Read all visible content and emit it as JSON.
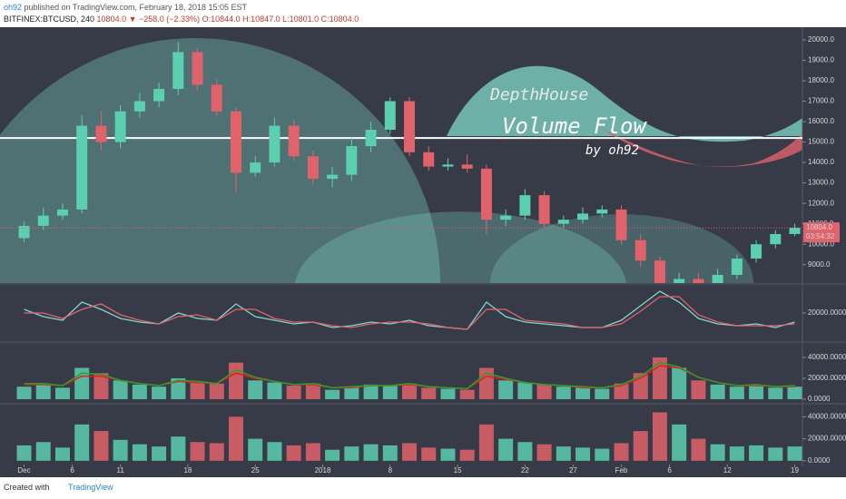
{
  "header": {
    "author": "oh92",
    "published": "published on TradingView.com, February 18, 2018 15:05 EST",
    "symbol": "BITFINEX:BTCUSD, 240",
    "quote": "10804.0 ▼ −258.0 (−2.33%)",
    "ohlc": "O:10844.0 H:10847.0 L:10801.0 C:10804.0"
  },
  "footer": {
    "created": "Created with",
    "brand": "TradingView"
  },
  "chart_data": [
    {
      "type": "candlestick",
      "annotations": [
        "DepthHouse",
        "Volume Flow",
        "by oh92"
      ],
      "last_price": {
        "value": 10804,
        "label": "10804.0"
      },
      "countdown": "03:54:32",
      "hline": 15200,
      "up_color": "#5ccfb0",
      "down_color": "#e0636b",
      "x": [
        0,
        2,
        4,
        6,
        8,
        10,
        12,
        14,
        16,
        18,
        20,
        22,
        24,
        26,
        28,
        30,
        32,
        34,
        36,
        38,
        40,
        42,
        44,
        46,
        48,
        50,
        52,
        54,
        56,
        58,
        60,
        62,
        64,
        66,
        68,
        70,
        72,
        74,
        76,
        78,
        80
      ],
      "open": [
        10300,
        10900,
        11400,
        11700,
        15800,
        15000,
        16500,
        17000,
        17600,
        19400,
        17800,
        16500,
        13500,
        14000,
        15800,
        14300,
        13200,
        13400,
        14800,
        15600,
        17000,
        14500,
        13800,
        13900,
        13700,
        11200,
        11400,
        12400,
        11000,
        11200,
        11500,
        11700,
        10200,
        9200,
        7900,
        8300,
        8000,
        8500,
        9300,
        10000,
        10500
      ],
      "high": [
        11100,
        11800,
        12000,
        16300,
        16500,
        16800,
        17400,
        17900,
        19900,
        19600,
        18100,
        16700,
        14300,
        16200,
        16100,
        14600,
        13800,
        15200,
        16000,
        17200,
        17200,
        14800,
        14200,
        14400,
        13900,
        11700,
        12700,
        12600,
        11400,
        11800,
        11900,
        11900,
        10500,
        9400,
        8600,
        8600,
        8800,
        9500,
        10200,
        10700,
        11000
      ],
      "low": [
        10100,
        10700,
        11200,
        11500,
        14600,
        14700,
        16200,
        16700,
        17300,
        17500,
        16300,
        12500,
        13300,
        13800,
        14100,
        12900,
        12800,
        13100,
        14500,
        15400,
        14300,
        13600,
        13600,
        13500,
        10500,
        10900,
        11200,
        10800,
        10800,
        11000,
        11300,
        10000,
        8900,
        7500,
        7600,
        7800,
        7900,
        8300,
        9100,
        9800,
        10400
      ],
      "close": [
        10900,
        11400,
        11700,
        15800,
        15000,
        16500,
        17000,
        17600,
        19400,
        17800,
        16500,
        13500,
        14000,
        15800,
        14300,
        13200,
        13400,
        14800,
        15600,
        17000,
        14500,
        13800,
        13900,
        13700,
        11200,
        11400,
        12400,
        11000,
        11200,
        11500,
        11700,
        10200,
        9200,
        7900,
        8300,
        8000,
        8500,
        9300,
        10000,
        10500,
        10804
      ],
      "xlim": [
        -2.5,
        80.8
      ],
      "xticks": [
        {
          "value": 0,
          "label": "Dec"
        },
        {
          "value": 5,
          "label": "6"
        },
        {
          "value": 10,
          "label": "11"
        },
        {
          "value": 17,
          "label": "18"
        },
        {
          "value": 24,
          "label": "25"
        },
        {
          "value": 31,
          "label": "2018"
        },
        {
          "value": 38,
          "label": "8"
        },
        {
          "value": 45,
          "label": "15"
        },
        {
          "value": 52,
          "label": "22"
        },
        {
          "value": 57,
          "label": "27"
        },
        {
          "value": 62,
          "label": "Feb"
        },
        {
          "value": 67,
          "label": "6"
        },
        {
          "value": 73,
          "label": "12"
        },
        {
          "value": 80,
          "label": "19"
        }
      ],
      "ylim": [
        8100,
        20530
      ],
      "yticks": [
        {
          "value": 9000,
          "label": "9000.0"
        },
        {
          "value": 10000,
          "label": "10000.0"
        },
        {
          "value": 11000,
          "label": "11000.0"
        },
        {
          "value": 12000,
          "label": "12000.0"
        },
        {
          "value": 13000,
          "label": "13000.0"
        },
        {
          "value": 14000,
          "label": "14000.0"
        },
        {
          "value": 15000,
          "label": "15000.0"
        },
        {
          "value": 16000,
          "label": "16000.0"
        },
        {
          "value": 17000,
          "label": "17000.0"
        },
        {
          "value": 18000,
          "label": "18000.0"
        },
        {
          "value": 19000,
          "label": "19000.0"
        },
        {
          "value": 20000,
          "label": "20000.0"
        }
      ]
    },
    {
      "type": "line",
      "ylim": [
        4500,
        35500
      ],
      "yticks": [
        {
          "value": 20000,
          "label": "20000.0000"
        }
      ],
      "series": [
        {
          "color": "#7fd8c8",
          "values": [
            22000,
            18000,
            16000,
            26000,
            22000,
            17000,
            15000,
            14000,
            20000,
            17000,
            16000,
            25000,
            18000,
            16000,
            14000,
            15000,
            12000,
            13000,
            15000,
            14000,
            16000,
            13000,
            12000,
            11000,
            26000,
            18000,
            15000,
            14000,
            13000,
            12000,
            12000,
            16000,
            24000,
            32000,
            26000,
            17000,
            14000,
            13000,
            14000,
            12000,
            15000
          ]
        },
        {
          "color": "#e0636b",
          "values": [
            20000,
            20000,
            17000,
            22000,
            25000,
            19000,
            16000,
            14000,
            18000,
            19000,
            16000,
            22000,
            22000,
            17000,
            15000,
            15000,
            13000,
            12000,
            14000,
            15000,
            15000,
            14000,
            12000,
            11000,
            22000,
            22000,
            16000,
            15000,
            14000,
            12000,
            12000,
            14000,
            21000,
            29000,
            29000,
            19000,
            15000,
            13000,
            13000,
            13000,
            14000
          ]
        }
      ]
    },
    {
      "type": "bar",
      "ylim": [
        -3500,
        53900
      ],
      "yticks": [
        {
          "value": 40000,
          "label": "40000.0000"
        },
        {
          "value": 20000,
          "label": "20000.0000"
        },
        {
          "value": 0,
          "label": "0.0000"
        }
      ],
      "values": [
        12000,
        15000,
        11000,
        30000,
        25000,
        18000,
        14000,
        12000,
        20000,
        16000,
        15000,
        35000,
        18000,
        16000,
        13000,
        15000,
        9000,
        12000,
        14000,
        13000,
        15000,
        11000,
        10000,
        9000,
        30000,
        18000,
        16000,
        14000,
        12000,
        11000,
        10000,
        15000,
        25000,
        40000,
        30000,
        18000,
        14000,
        12000,
        13000,
        11000,
        12000
      ],
      "series": [
        {
          "color": "#e02020",
          "values": [
            14000,
            14000,
            13000,
            22000,
            22000,
            18000,
            15000,
            13000,
            17000,
            16000,
            15000,
            25000,
            20000,
            17000,
            14000,
            14000,
            11000,
            11000,
            13000,
            13000,
            14000,
            12000,
            11000,
            10000,
            22000,
            19000,
            16000,
            14000,
            13000,
            11000,
            11000,
            13000,
            20000,
            32000,
            30000,
            21000,
            16000,
            13000,
            13000,
            12000,
            12000
          ]
        },
        {
          "color": "#2aa02a",
          "values": [
            15000,
            15000,
            13000,
            25000,
            24000,
            18000,
            15000,
            13000,
            18000,
            17000,
            15000,
            28000,
            21000,
            17000,
            14000,
            15000,
            11000,
            12000,
            13000,
            13000,
            15000,
            12000,
            11000,
            10000,
            25000,
            20000,
            16000,
            14000,
            13000,
            12000,
            11000,
            14000,
            22000,
            35000,
            31000,
            21000,
            16000,
            13000,
            14000,
            12000,
            13000
          ]
        }
      ]
    },
    {
      "type": "bar",
      "ylim": [
        -3400,
        51000
      ],
      "yticks": [
        {
          "value": 40000,
          "label": "40000.0000"
        },
        {
          "value": 20000,
          "label": "20000.0000"
        },
        {
          "value": 0,
          "label": "0.0000"
        }
      ],
      "values": [
        14000,
        17000,
        12000,
        33000,
        27000,
        19000,
        15000,
        13000,
        22000,
        17000,
        16000,
        40000,
        20000,
        17000,
        14000,
        16000,
        10000,
        13000,
        15000,
        14000,
        16000,
        12000,
        11000,
        10000,
        33000,
        20000,
        17000,
        15000,
        13000,
        12000,
        11000,
        16000,
        27000,
        44000,
        33000,
        20000,
        15000,
        13000,
        14000,
        12000,
        13000
      ]
    }
  ]
}
